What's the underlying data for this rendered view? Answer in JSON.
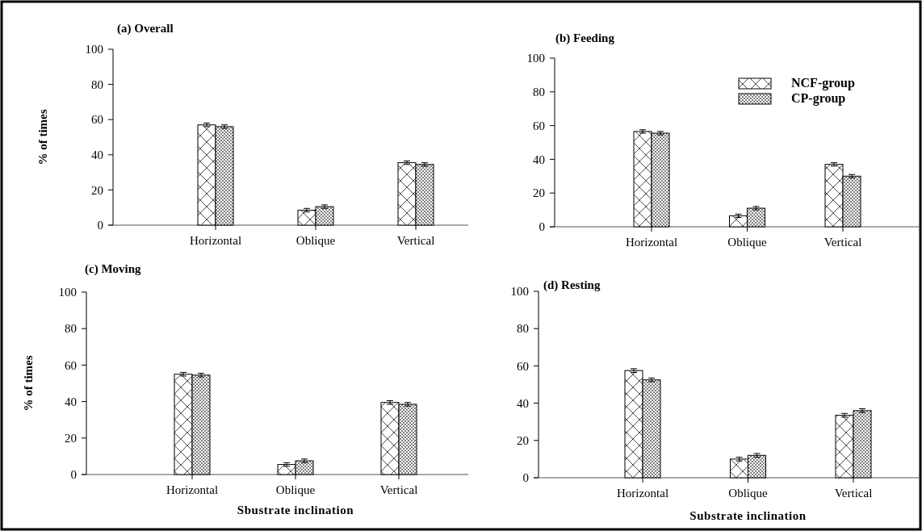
{
  "chart_data": [
    {
      "type": "bar",
      "title": "(a) Overall",
      "ylabel": "% of times",
      "categories": [
        "Horizontal",
        "Oblique",
        "Vertical"
      ],
      "ylim": [
        0,
        100
      ],
      "yticks": [
        0,
        20,
        40,
        60,
        80,
        100
      ],
      "legend": false,
      "series": [
        {
          "color": "#000000",
          "values": [
            57,
            8.5,
            35.5
          ],
          "errors": [
            1,
            1,
            1
          ]
        },
        {
          "color": "#000000",
          "values": [
            56,
            10.5,
            34.5
          ],
          "errors": [
            1,
            1,
            1
          ]
        }
      ]
    },
    {
      "type": "bar",
      "title": "(b) Feeding",
      "categories": [
        "Horizontal",
        "Oblique",
        "Vertical"
      ],
      "ylim": [
        0,
        100
      ],
      "yticks": [
        0,
        20,
        40,
        60,
        80,
        100
      ],
      "legend": "top right",
      "series": [
        {
          "name": "NCF-group",
          "color": "#000000",
          "values": [
            56.5,
            6.5,
            37
          ],
          "errors": [
            1,
            1,
            1
          ]
        },
        {
          "name": "CP-group",
          "color": "#000000",
          "values": [
            55.5,
            11,
            30
          ],
          "errors": [
            1,
            1,
            1
          ]
        }
      ]
    },
    {
      "type": "bar",
      "title": "(c) Moving",
      "ylabel": "% of times",
      "xlabel": "Sbustrate inclination",
      "categories": [
        "Horizontal",
        "Oblique",
        "Vertical"
      ],
      "ylim": [
        0,
        100
      ],
      "yticks": [
        0,
        20,
        40,
        60,
        80,
        100
      ],
      "legend": false,
      "series": [
        {
          "color": "#000000",
          "values": [
            55,
            5.5,
            39.5
          ],
          "errors": [
            1,
            1,
            1
          ]
        },
        {
          "color": "#000000",
          "values": [
            54.5,
            7.5,
            38.5
          ],
          "errors": [
            1,
            1,
            1
          ]
        }
      ]
    },
    {
      "type": "bar",
      "title": "(d) Resting",
      "xlabel": "Substrate inclination",
      "categories": [
        "Horizontal",
        "Oblique",
        "Vertical"
      ],
      "ylim": [
        0,
        100
      ],
      "yticks": [
        0,
        20,
        40,
        60,
        80,
        100
      ],
      "legend": false,
      "series": [
        {
          "color": "#000000",
          "values": [
            57.5,
            10,
            33.5
          ],
          "errors": [
            1,
            1,
            1
          ]
        },
        {
          "color": "#000000",
          "values": [
            52.5,
            12,
            36
          ],
          "errors": [
            1,
            1,
            1
          ]
        }
      ]
    }
  ]
}
